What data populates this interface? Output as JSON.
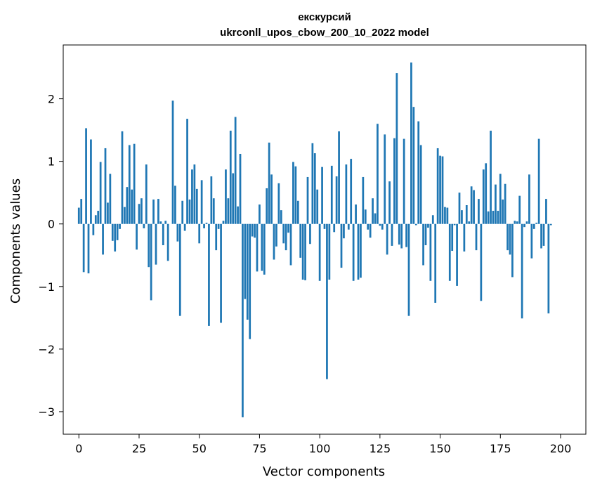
{
  "colors": {
    "bar": "#1f77b4",
    "axis": "#000000",
    "background": "#ffffff"
  },
  "chart_data": {
    "type": "bar",
    "title_line1": "екскурсий",
    "title_line2": "ukrconll_upos_cbow_200_10_2022 model",
    "xlabel": "Vector components",
    "ylabel": "Components values",
    "xlim": [
      -6.5,
      210.5
    ],
    "ylim": [
      -3.36,
      2.86
    ],
    "xticks": [
      0,
      25,
      50,
      75,
      100,
      125,
      150,
      175,
      200
    ],
    "xtick_labels": [
      "0",
      "25",
      "50",
      "75",
      "100",
      "125",
      "150",
      "175",
      "200"
    ],
    "yticks": [
      -3,
      -2,
      -1,
      0,
      1,
      2
    ],
    "ytick_labels": [
      "−3",
      "−2",
      "−1",
      "0",
      "1",
      "2"
    ],
    "values": [
      0.26,
      0.4,
      -0.77,
      1.53,
      -0.79,
      1.35,
      -0.18,
      0.14,
      0.21,
      0.99,
      -0.49,
      1.21,
      0.34,
      0.8,
      -0.27,
      -0.44,
      -0.26,
      -0.08,
      1.48,
      0.27,
      0.59,
      1.26,
      0.55,
      1.28,
      -0.41,
      0.32,
      0.41,
      -0.07,
      0.95,
      -0.69,
      -1.22,
      0.39,
      -0.65,
      0.4,
      0.04,
      -0.34,
      0.05,
      -0.59,
      0.0,
      1.97,
      0.61,
      -0.28,
      -1.47,
      0.37,
      -0.11,
      1.68,
      0.39,
      0.87,
      0.95,
      0.56,
      -0.31,
      0.7,
      -0.07,
      0.02,
      -1.63,
      0.76,
      0.41,
      -0.42,
      -0.08,
      -1.58,
      0.05,
      0.87,
      0.41,
      1.49,
      0.81,
      1.71,
      0.28,
      1.12,
      -3.09,
      -1.2,
      -1.53,
      -1.84,
      -0.2,
      -0.22,
      -0.76,
      0.31,
      -0.75,
      -0.81,
      0.57,
      1.3,
      0.79,
      -0.57,
      -0.36,
      0.65,
      0.22,
      -0.31,
      -0.42,
      -0.14,
      -0.66,
      0.99,
      0.92,
      0.37,
      -0.54,
      -0.89,
      -0.9,
      0.75,
      -0.32,
      1.29,
      1.13,
      0.55,
      -0.91,
      0.91,
      -0.08,
      -2.48,
      -0.89,
      0.93,
      -0.13,
      0.76,
      1.48,
      -0.7,
      -0.23,
      0.95,
      -0.09,
      1.04,
      -0.91,
      0.31,
      -0.89,
      -0.86,
      0.75,
      0.23,
      -0.09,
      -0.22,
      0.41,
      0.17,
      1.6,
      -0.03,
      -0.09,
      1.43,
      -0.49,
      0.68,
      -0.35,
      1.37,
      2.41,
      -0.33,
      -0.39,
      1.36,
      -0.37,
      -1.47,
      2.58,
      1.87,
      -0.02,
      1.64,
      1.26,
      -0.66,
      -0.34,
      -0.06,
      -0.91,
      0.14,
      -1.26,
      1.21,
      1.09,
      1.08,
      0.27,
      0.26,
      -0.91,
      -0.43,
      -0.02,
      -0.99,
      0.5,
      0.22,
      -0.44,
      0.3,
      0.04,
      0.6,
      0.54,
      -0.42,
      0.4,
      -1.23,
      0.87,
      0.97,
      0.2,
      1.49,
      0.21,
      0.63,
      0.21,
      0.8,
      0.39,
      0.64,
      -0.42,
      -0.49,
      -0.85,
      0.05,
      0.04,
      0.45,
      -1.51,
      -0.05,
      0.04,
      0.79,
      -0.55,
      -0.08,
      0.02,
      1.36,
      -0.39,
      -0.35,
      0.4,
      -1.43,
      -0.02
    ]
  }
}
